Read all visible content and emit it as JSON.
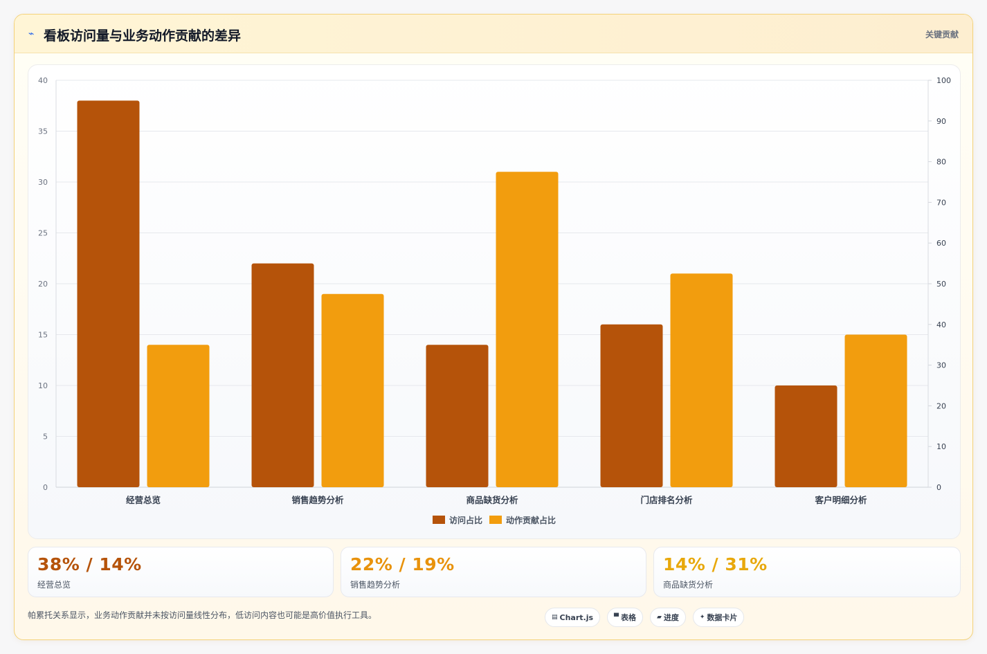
{
  "header": {
    "icon": "trend-icon",
    "title": "看板访问量与业务动作贡献的差异",
    "tag": "关键贡献"
  },
  "colors": {
    "visits": "#b5530a",
    "contribution": "#f29d0e",
    "accent_blue": "#2563eb"
  },
  "chart_data": {
    "type": "bar",
    "categories": [
      "经营总览",
      "销售趋势分析",
      "商品缺货分析",
      "门店排名分析",
      "客户明细分析"
    ],
    "series": [
      {
        "name": "访问占比",
        "values": [
          38,
          22,
          14,
          16,
          10
        ],
        "axis": "left"
      },
      {
        "name": "动作贡献占比",
        "values": [
          14,
          19,
          31,
          21,
          15
        ],
        "axis": "left"
      }
    ],
    "y_left": {
      "min": 0,
      "max": 40,
      "ticks": [
        "0",
        "5",
        "10",
        "15",
        "20",
        "25",
        "30",
        "35",
        "40"
      ]
    },
    "y_right": {
      "min": 0,
      "max": 100,
      "ticks": [
        "0",
        "10",
        "20",
        "30",
        "40",
        "50",
        "60",
        "70",
        "80",
        "90",
        "100"
      ]
    },
    "grid": true,
    "legend": "bottom-center"
  },
  "stats": [
    {
      "value": "38% / 14%",
      "label": "经营总览",
      "color": "#b5530a"
    },
    {
      "value": "22% / 19%",
      "label": "销售趋势分析",
      "color": "#e8920c"
    },
    {
      "value": "14% / 31%",
      "label": "商品缺货分析",
      "color": "#e8a80c"
    }
  ],
  "footnote": "帕累托关系显示，业务动作贡献并未按访问量线性分布，低访问内容也可能是高价值执行工具。",
  "chips": [
    {
      "icon": "chart-icon",
      "glyph": "▤",
      "label": "Chart.js"
    },
    {
      "icon": "table-icon",
      "glyph": "▀",
      "label": "表格"
    },
    {
      "icon": "progress-icon",
      "glyph": "▰",
      "label": "进度"
    },
    {
      "icon": "card-icon",
      "glyph": "✦",
      "label": "数据卡片"
    }
  ]
}
